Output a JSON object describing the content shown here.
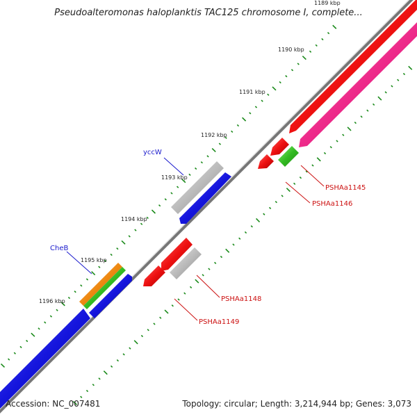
{
  "map": {
    "title": "Pseudoalteromonas haloplanktis TAC125 chromosome I, complete...",
    "accession": "Accession: NC_007481",
    "summary": "Topology: circular; Length: 3,214,944 bp; Genes: 3,073",
    "ticks": [
      "1189 kbp",
      "1190 kbp",
      "1191 kbp",
      "1192 kbp",
      "1193 kbp",
      "1194 kbp",
      "1195 kbp",
      "1196 kbp"
    ],
    "gene_labels": [
      {
        "text": "yccW",
        "color": "#1a1acc"
      },
      {
        "text": "CheB",
        "color": "#1a1acc"
      },
      {
        "text": "PSHAa1145",
        "color": "#cc1111"
      },
      {
        "text": "PSHAa1146",
        "color": "#cc1111"
      },
      {
        "text": "PSHAa1148",
        "color": "#cc1111"
      },
      {
        "text": "PSHAa1149",
        "color": "#cc1111"
      }
    ],
    "colors": {
      "backbone": "#888888",
      "red": "#ee1111",
      "pink": "#ee2a8a",
      "blue": "#1515dd",
      "green": "#33bb22",
      "orange": "#ee8811",
      "gray": "#bbbbbb",
      "tick_dot": "#1a8a1a"
    }
  }
}
